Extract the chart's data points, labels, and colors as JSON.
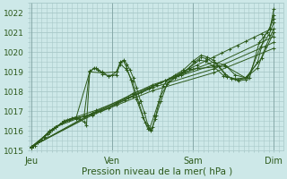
{
  "bg_color": "#cde8e8",
  "grid_color": "#a8c8c8",
  "line_color": "#2d5a1b",
  "marker_color": "#2d5a1b",
  "ylim": [
    1015.0,
    1022.5
  ],
  "yticks": [
    1015,
    1016,
    1017,
    1018,
    1019,
    1020,
    1021,
    1022
  ],
  "xlabel": "Pression niveau de la mer( hPa )",
  "xlabel_fontsize": 7.5,
  "xtick_labels": [
    "Jeu",
    "Ven",
    "Sam",
    "Dim"
  ],
  "xtick_positions": [
    0,
    1,
    2,
    3
  ],
  "xlim": [
    -0.02,
    3.12
  ],
  "series": [
    [
      0.0,
      1015.15,
      0.04,
      1015.25,
      0.08,
      1015.4,
      0.12,
      1015.55,
      0.16,
      1015.7,
      0.2,
      1015.85,
      0.25,
      1016.05,
      0.3,
      1016.2,
      0.38,
      1016.4,
      0.46,
      1016.55,
      0.55,
      1016.65,
      0.65,
      1016.75,
      0.75,
      1016.85,
      0.85,
      1017.0,
      0.95,
      1017.15,
      1.05,
      1017.35,
      1.15,
      1017.55,
      1.25,
      1017.75,
      1.35,
      1017.95,
      1.45,
      1018.15,
      1.55,
      1018.35,
      1.65,
      1018.55,
      1.75,
      1018.75,
      1.85,
      1018.95,
      1.95,
      1019.15,
      2.05,
      1019.35,
      2.15,
      1019.55,
      2.25,
      1019.75,
      2.35,
      1019.95,
      2.45,
      1020.15,
      2.55,
      1020.35,
      2.65,
      1020.55,
      2.75,
      1020.75,
      2.85,
      1020.95,
      2.95,
      1021.15,
      3.0,
      1022.2
    ],
    [
      0.0,
      1015.15,
      0.08,
      1015.4,
      0.15,
      1015.7,
      0.22,
      1016.0,
      0.3,
      1016.2,
      0.38,
      1016.4,
      0.44,
      1016.55,
      0.5,
      1016.65,
      0.55,
      1016.7,
      0.6,
      1016.6,
      0.65,
      1016.45,
      0.68,
      1016.3,
      0.72,
      1019.0,
      0.77,
      1019.2,
      0.82,
      1019.1,
      0.88,
      1018.9,
      0.95,
      1018.8,
      1.0,
      1018.85,
      1.05,
      1019.0,
      1.1,
      1019.5,
      1.14,
      1019.6,
      1.18,
      1019.4,
      1.22,
      1019.1,
      1.26,
      1018.7,
      1.3,
      1018.2,
      1.35,
      1017.5,
      1.4,
      1016.9,
      1.44,
      1016.3,
      1.47,
      1016.05,
      1.5,
      1016.2,
      1.54,
      1016.8,
      1.58,
      1017.5,
      1.63,
      1018.3,
      1.7,
      1018.65,
      1.78,
      1018.85,
      1.88,
      1019.1,
      2.0,
      1019.55,
      2.1,
      1019.85,
      2.18,
      1019.75,
      2.25,
      1019.6,
      2.32,
      1019.3,
      2.4,
      1018.9,
      2.48,
      1018.65,
      2.56,
      1018.55,
      2.65,
      1018.6,
      2.8,
      1019.5,
      2.88,
      1020.8,
      2.95,
      1021.2,
      3.0,
      1021.9
    ],
    [
      0.0,
      1015.15,
      0.15,
      1015.7,
      0.28,
      1016.15,
      0.42,
      1016.5,
      0.55,
      1016.65,
      0.65,
      1016.75,
      0.72,
      1019.05,
      0.8,
      1019.2,
      0.87,
      1019.0,
      0.95,
      1018.8,
      1.05,
      1018.85,
      1.1,
      1019.45,
      1.14,
      1019.55,
      1.18,
      1019.2,
      1.23,
      1018.6,
      1.3,
      1017.6,
      1.38,
      1016.7,
      1.44,
      1016.1,
      1.48,
      1016.0,
      1.53,
      1016.6,
      1.6,
      1017.5,
      1.68,
      1018.4,
      1.78,
      1018.7,
      1.9,
      1019.0,
      2.02,
      1019.5,
      2.1,
      1019.75,
      2.18,
      1019.65,
      2.3,
      1019.35,
      2.42,
      1018.75,
      2.55,
      1018.6,
      2.7,
      1018.7,
      2.82,
      1020.5,
      2.92,
      1021.0,
      3.0,
      1021.7
    ],
    [
      0.0,
      1015.15,
      0.22,
      1015.9,
      0.38,
      1016.4,
      0.55,
      1016.65,
      0.72,
      1019.0,
      0.88,
      1018.95,
      1.05,
      1019.0,
      1.1,
      1019.4,
      1.18,
      1019.1,
      1.25,
      1018.5,
      1.33,
      1017.4,
      1.41,
      1016.4,
      1.46,
      1016.1,
      1.52,
      1016.8,
      1.6,
      1017.8,
      1.7,
      1018.5,
      1.82,
      1018.85,
      1.95,
      1019.2,
      2.08,
      1019.6,
      2.15,
      1019.55,
      2.25,
      1019.3,
      2.38,
      1018.8,
      2.52,
      1018.65,
      2.68,
      1018.7,
      2.84,
      1020.3,
      2.94,
      1020.9,
      3.0,
      1021.5
    ],
    [
      0.0,
      1015.2,
      0.3,
      1016.2,
      0.55,
      1016.6,
      0.8,
      1016.95,
      1.05,
      1017.4,
      1.25,
      1017.9,
      1.45,
      1018.2,
      1.65,
      1018.55,
      1.85,
      1018.85,
      2.05,
      1019.2,
      2.25,
      1019.5,
      2.4,
      1019.35,
      2.52,
      1018.85,
      2.65,
      1018.7,
      2.8,
      1019.2,
      2.9,
      1020.3,
      3.0,
      1021.2
    ],
    [
      0.0,
      1015.2,
      0.4,
      1016.5,
      0.8,
      1017.05,
      1.2,
      1017.7,
      1.6,
      1018.45,
      2.0,
      1019.15,
      2.4,
      1019.3,
      2.65,
      1018.7,
      2.85,
      1019.7,
      3.0,
      1021.0
    ],
    [
      0.0,
      1015.2,
      0.75,
      1016.9,
      1.5,
      1018.35,
      2.25,
      1019.35,
      3.0,
      1020.8
    ],
    [
      0.0,
      1015.2,
      0.75,
      1016.85,
      1.5,
      1018.2,
      2.25,
      1019.15,
      3.0,
      1020.5
    ],
    [
      0.0,
      1015.2,
      0.75,
      1016.8,
      1.5,
      1018.05,
      2.25,
      1018.95,
      3.0,
      1020.2
    ]
  ]
}
